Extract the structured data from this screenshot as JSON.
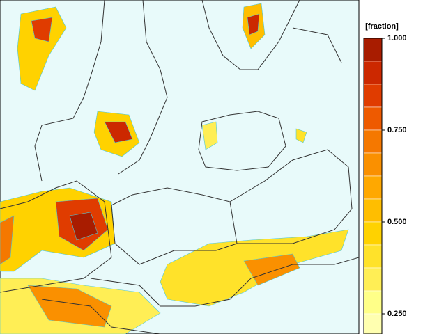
{
  "colorbar": {
    "title": "[fraction]",
    "ticks": [
      {
        "value": 1.0,
        "label": "1.000"
      },
      {
        "value": 0.75,
        "label": "0.750"
      },
      {
        "value": 0.5,
        "label": "0.500"
      },
      {
        "value": 0.25,
        "label": "0.250"
      }
    ],
    "colors": [
      "#a81c00",
      "#cc2800",
      "#e03c00",
      "#ee5a00",
      "#f57800",
      "#fa9000",
      "#ffa800",
      "#ffbe00",
      "#ffd200",
      "#ffe22a",
      "#ffee55",
      "#ffff88",
      "#ffffb0"
    ]
  }
}
